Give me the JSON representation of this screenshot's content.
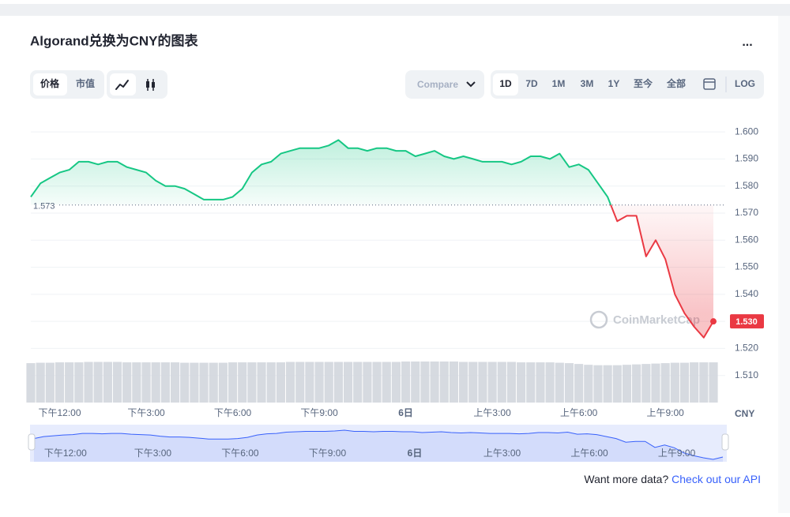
{
  "chart_data": {
    "type": "line",
    "title": "Algorand兑换为CNY的图表",
    "categories": [
      null,
      null,
      null,
      "下午12:00",
      null,
      null,
      null,
      null,
      null,
      null,
      null,
      null,
      "下午3:00",
      null,
      null,
      null,
      null,
      null,
      null,
      null,
      null,
      "下午6:00",
      null,
      null,
      null,
      null,
      null,
      null,
      null,
      null,
      "下午9:00",
      null,
      null,
      null,
      null,
      null,
      null,
      null,
      null,
      "6日",
      null,
      null,
      null,
      null,
      null,
      null,
      null,
      null,
      "上午3:00",
      null,
      null,
      null,
      null,
      null,
      null,
      null,
      null,
      "上午6:00",
      null,
      null,
      null,
      null,
      null,
      null,
      null,
      null,
      "上午9:00",
      null,
      null,
      null,
      null,
      null
    ],
    "series": [
      {
        "name": "Price",
        "color": "#16c784",
        "values": [
          1.576,
          1.581,
          1.583,
          1.585,
          1.586,
          1.589,
          1.589,
          1.588,
          1.589,
          1.589,
          1.587,
          1.586,
          1.585,
          1.582,
          1.58,
          1.58,
          1.579,
          1.577,
          1.575,
          1.575,
          1.575,
          1.576,
          1.579,
          1.585,
          1.588,
          1.589,
          1.592,
          1.593,
          1.594,
          1.594,
          1.594,
          1.595,
          1.597,
          1.594,
          1.594,
          1.593,
          1.594,
          1.594,
          1.593,
          1.593,
          1.591,
          1.592,
          1.593,
          1.591,
          1.59,
          1.591,
          1.59,
          1.589,
          1.589,
          1.589,
          1.588,
          1.589,
          1.591,
          1.591,
          1.59,
          1.592,
          1.587,
          1.588,
          1.586,
          1.581,
          1.576,
          1.567,
          1.569,
          1.569,
          1.554,
          1.56,
          1.553,
          1.54,
          1.533,
          1.528,
          1.524,
          1.53
        ]
      },
      {
        "name": "Volume",
        "color": "#cfd3da",
        "values": [
          96,
          97,
          97,
          98,
          98,
          98,
          99,
          99,
          99,
          99,
          98,
          98,
          98,
          98,
          98,
          98,
          97,
          97,
          97,
          97,
          97,
          98,
          98,
          98,
          98,
          98,
          98,
          99,
          99,
          99,
          99,
          99,
          99,
          99,
          99,
          99,
          99,
          99,
          99,
          100,
          100,
          100,
          100,
          100,
          100,
          99,
          99,
          99,
          99,
          99,
          99,
          98,
          98,
          98,
          98,
          97,
          96,
          94,
          92,
          91,
          91,
          91,
          92,
          93,
          94,
          95,
          96,
          97,
          97,
          98,
          98,
          98
        ]
      }
    ],
    "down_color": "#ea3943",
    "ylim": [
      1.5,
      1.605
    ],
    "yticks": [
      {
        "value": 1.51,
        "label": "1.510"
      },
      {
        "value": 1.52,
        "label": "1.520"
      },
      {
        "value": 1.53,
        "label": "1.530"
      },
      {
        "value": 1.54,
        "label": "1.540"
      },
      {
        "value": 1.55,
        "label": "1.550"
      },
      {
        "value": 1.56,
        "label": "1.560"
      },
      {
        "value": 1.57,
        "label": "1.570"
      },
      {
        "value": 1.58,
        "label": "1.580"
      },
      {
        "value": 1.59,
        "label": "1.590"
      },
      {
        "value": 1.6,
        "label": "1.600"
      }
    ],
    "reference_value": 1.573,
    "current_price": {
      "value": 1.53,
      "label": "1.530"
    },
    "currency": "CNY",
    "grid": true,
    "watermark": "CoinMarketCap"
  },
  "ui": {
    "more": "...",
    "tabs": [
      "价格",
      "市值"
    ],
    "compare": "Compare",
    "ranges": [
      "1D",
      "7D",
      "1M",
      "3M",
      "1Y",
      "至今",
      "全部"
    ],
    "log": "LOG",
    "footer_prompt": "Want more data?",
    "footer_link": "Check out our API"
  }
}
